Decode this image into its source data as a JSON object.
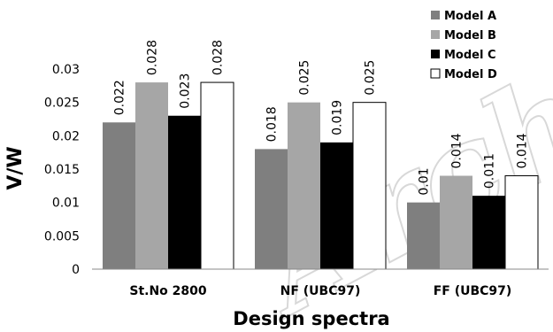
{
  "chart_data": {
    "type": "bar",
    "categories": [
      "St.No 2800",
      "NF (UBC97)",
      "FF (UBC97)"
    ],
    "series": [
      {
        "name": "Model A",
        "color": "#7f7f7f",
        "values": [
          0.022,
          0.018,
          0.01
        ]
      },
      {
        "name": "Model B",
        "color": "#a6a6a6",
        "values": [
          0.028,
          0.025,
          0.014
        ]
      },
      {
        "name": "Model C",
        "color": "#000000",
        "values": [
          0.023,
          0.019,
          0.011
        ]
      },
      {
        "name": "Model D",
        "color": "#ffffff",
        "values": [
          0.028,
          0.025,
          0.014
        ]
      }
    ],
    "data_labels": [
      [
        "0.022",
        "0.018",
        "0.01"
      ],
      [
        "0.028",
        "0.025",
        "0.014"
      ],
      [
        "0.023",
        "0.019",
        "0.011"
      ],
      [
        "0.028",
        "0.025",
        "0.014"
      ]
    ],
    "yticks": [
      "0",
      "0.005",
      "0.01",
      "0.015",
      "0.02",
      "0.025",
      "0.03"
    ],
    "xlabel": "Design spectra",
    "ylabel": "V/W",
    "ylim": [
      0,
      0.03
    ],
    "legend_position": "top-right",
    "grid": false
  },
  "watermark_text": "Archive"
}
